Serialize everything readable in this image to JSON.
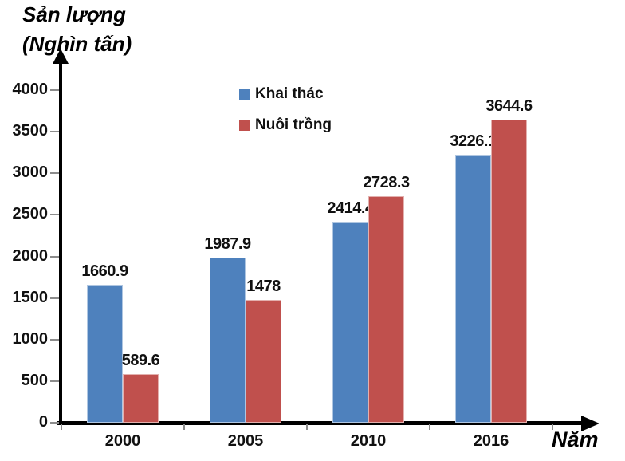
{
  "chart_data": {
    "type": "bar",
    "title": "Sản lượng (Nghìn tấn)",
    "title_lines": [
      "Sản lượng",
      "(Nghìn tấn)"
    ],
    "ylabel": "Sản lượng (Nghìn tấn)",
    "xlabel": "Năm",
    "categories": [
      "2000",
      "2005",
      "2010",
      "2016"
    ],
    "series": [
      {
        "name": "Khai thác",
        "color": "#4E81BD",
        "values": [
          1660.9,
          1987.9,
          2414.4,
          3226.1
        ]
      },
      {
        "name": "Nuôi trồng",
        "color": "#C0504D",
        "values": [
          589.6,
          1478,
          2728.3,
          3644.6
        ]
      }
    ],
    "y_ticks": [
      0,
      500,
      1000,
      1500,
      2000,
      2500,
      3000,
      3500,
      4000
    ],
    "ylim": [
      0,
      4000
    ],
    "grid": false,
    "legend_position": "inside-top-center",
    "data_labels_shown": true
  },
  "style": {
    "axis_color": "#000000",
    "tick_color": "#8c8c8c",
    "text_color": "#111111",
    "background": "#ffffff"
  }
}
